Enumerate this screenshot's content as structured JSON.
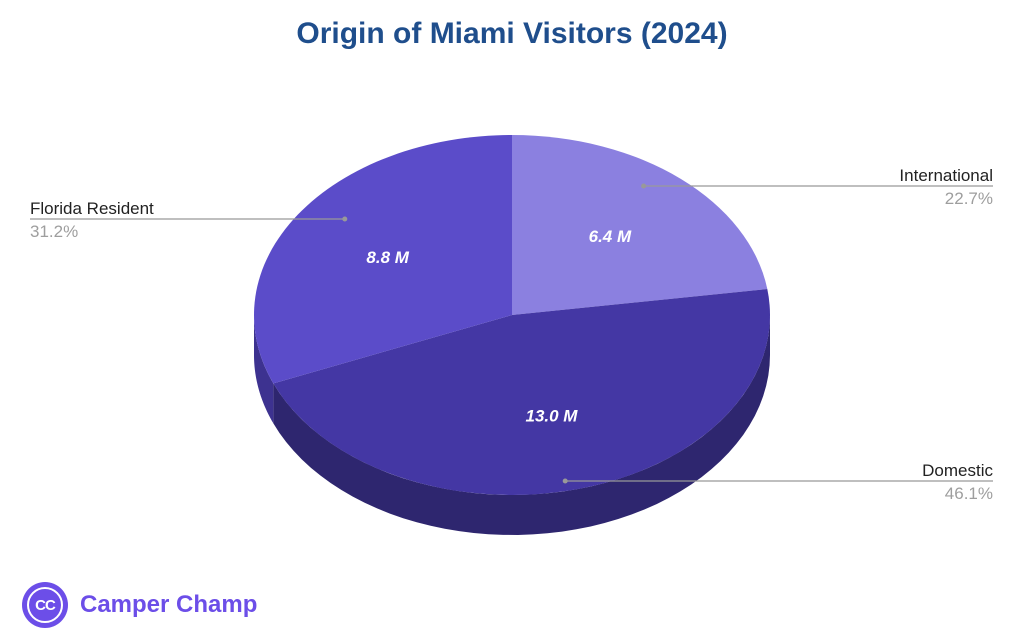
{
  "chart_data": {
    "type": "pie",
    "title": "Origin of Miami Visitors (2024)",
    "slices": [
      {
        "label": "International",
        "value": 6.4,
        "value_label": "6.4 M",
        "percent_label": "22.7%",
        "color": "#8b80e0",
        "side_color": "#5f56a8"
      },
      {
        "label": "Domestic",
        "value": 13.0,
        "value_label": "13.0 M",
        "percent_label": "46.1%",
        "color": "#4437a4",
        "side_color": "#2e266f"
      },
      {
        "label": "Florida Resident",
        "value": 8.8,
        "value_label": "8.8 M",
        "percent_label": "31.2%",
        "color": "#5b4cc9",
        "side_color": "#3d3290"
      }
    ],
    "style": "3d"
  },
  "brand": {
    "logo_text": "CC",
    "name": "Camper Champ",
    "color": "#6c4ee8"
  },
  "colors": {
    "title": "#1f4e8c",
    "leader_line": "#999999",
    "label_text": "#222222",
    "percent_text": "#9e9e9e",
    "inside_label": "#ffffff"
  }
}
